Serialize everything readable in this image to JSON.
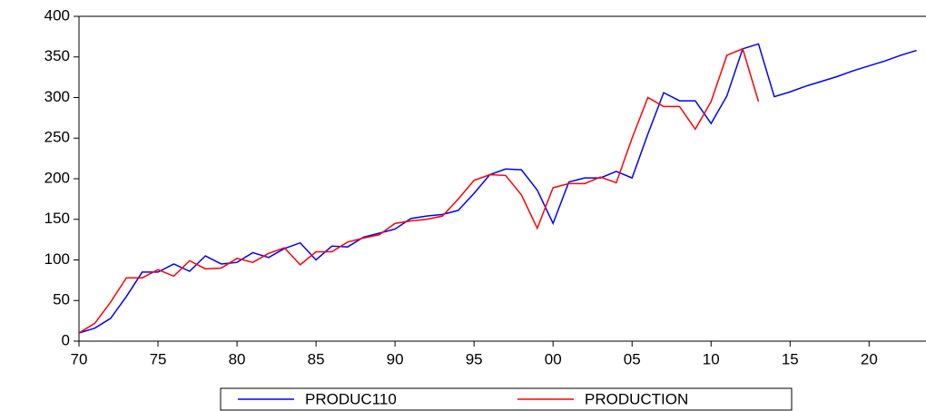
{
  "chart_data": {
    "type": "line",
    "x": [
      1970,
      1971,
      1972,
      1973,
      1974,
      1975,
      1976,
      1977,
      1978,
      1979,
      1980,
      1981,
      1982,
      1983,
      1984,
      1985,
      1986,
      1987,
      1988,
      1989,
      1990,
      1991,
      1992,
      1993,
      1994,
      1995,
      1996,
      1997,
      1998,
      1999,
      2000,
      2001,
      2002,
      2003,
      2004,
      2005,
      2006,
      2007,
      2008,
      2009,
      2010,
      2011,
      2012,
      2013,
      2014,
      2015,
      2016,
      2017,
      2018,
      2019,
      2020,
      2021,
      2022,
      2023
    ],
    "series": [
      {
        "name": "PRODUC110",
        "color": "#0000ff",
        "values": [
          10,
          16,
          28,
          55,
          85,
          85,
          95,
          86,
          105,
          95,
          97,
          109,
          103,
          114,
          121,
          100,
          117,
          116,
          128,
          133,
          138,
          151,
          154,
          156,
          161,
          182,
          205,
          212,
          211,
          186,
          145,
          196,
          201,
          201,
          209,
          201,
          255,
          306,
          296,
          296,
          268,
          302,
          360,
          366,
          301,
          307,
          314,
          320,
          326,
          333,
          339,
          345,
          352,
          358
        ]
      },
      {
        "name": "PRODUCTION",
        "color": "#ff0000",
        "values": [
          10,
          22,
          48,
          78,
          78,
          88,
          80,
          99,
          89,
          90,
          102,
          97,
          108,
          115,
          94,
          110,
          110,
          122,
          127,
          131,
          145,
          148,
          150,
          154,
          175,
          198,
          205,
          204,
          180,
          139,
          189,
          194,
          194,
          202,
          195,
          250,
          300,
          289,
          289,
          261,
          295,
          352,
          360,
          295,
          null,
          null,
          null,
          null,
          null,
          null,
          null,
          null,
          null,
          null
        ]
      }
    ],
    "xlim": [
      1970,
      2023.6
    ],
    "xticks": [
      {
        "value": 1970,
        "label": "70"
      },
      {
        "value": 1975,
        "label": "75"
      },
      {
        "value": 1980,
        "label": "80"
      },
      {
        "value": 1985,
        "label": "85"
      },
      {
        "value": 1990,
        "label": "90"
      },
      {
        "value": 1995,
        "label": "95"
      },
      {
        "value": 2000,
        "label": "00"
      },
      {
        "value": 2005,
        "label": "05"
      },
      {
        "value": 2010,
        "label": "10"
      },
      {
        "value": 2015,
        "label": "15"
      },
      {
        "value": 2020,
        "label": "20"
      }
    ],
    "ylim": [
      0,
      400
    ],
    "yticks": [
      0,
      50,
      100,
      150,
      200,
      250,
      300,
      350,
      400
    ]
  }
}
